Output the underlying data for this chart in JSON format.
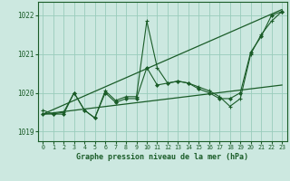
{
  "bg_color": "#cce8e0",
  "grid_color": "#99ccbb",
  "line_color": "#1a5c28",
  "xlabel": "Graphe pression niveau de la mer (hPa)",
  "ylim": [
    1018.75,
    1022.35
  ],
  "xlim": [
    -0.5,
    23.5
  ],
  "yticks": [
    1019,
    1020,
    1021,
    1022
  ],
  "xticks": [
    0,
    1,
    2,
    3,
    4,
    5,
    6,
    7,
    8,
    9,
    10,
    11,
    12,
    13,
    14,
    15,
    16,
    17,
    18,
    19,
    20,
    21,
    22,
    23
  ],
  "series1_x": [
    0,
    1,
    2,
    3,
    4,
    5,
    6,
    7,
    8,
    9,
    10,
    11,
    12,
    13,
    14,
    15,
    16,
    17,
    18,
    19,
    20,
    21,
    22,
    23
  ],
  "series1_y": [
    1019.55,
    1019.45,
    1019.5,
    1020.0,
    1019.55,
    1019.35,
    1020.05,
    1019.8,
    1019.9,
    1019.9,
    1021.85,
    1020.65,
    1020.25,
    1020.3,
    1020.25,
    1020.15,
    1020.05,
    1019.9,
    1019.65,
    1019.85,
    1021.0,
    1021.5,
    1021.85,
    1022.1
  ],
  "series2_x": [
    0,
    1,
    2,
    3,
    4,
    5,
    6,
    7,
    8,
    9,
    10,
    11,
    12,
    13,
    14,
    15,
    16,
    17,
    18,
    19,
    20,
    21,
    22,
    23
  ],
  "series2_y": [
    1019.45,
    1019.45,
    1019.45,
    1020.0,
    1019.55,
    1019.35,
    1020.0,
    1019.75,
    1019.85,
    1019.85,
    1020.65,
    1020.2,
    1020.25,
    1020.3,
    1020.25,
    1020.1,
    1020.0,
    1019.85,
    1019.85,
    1020.0,
    1021.05,
    1021.45,
    1022.0,
    1022.1
  ],
  "trend1_x": [
    0,
    23
  ],
  "trend1_y": [
    1019.45,
    1022.15
  ],
  "trend2_x": [
    0,
    23
  ],
  "trend2_y": [
    1019.45,
    1020.2
  ]
}
